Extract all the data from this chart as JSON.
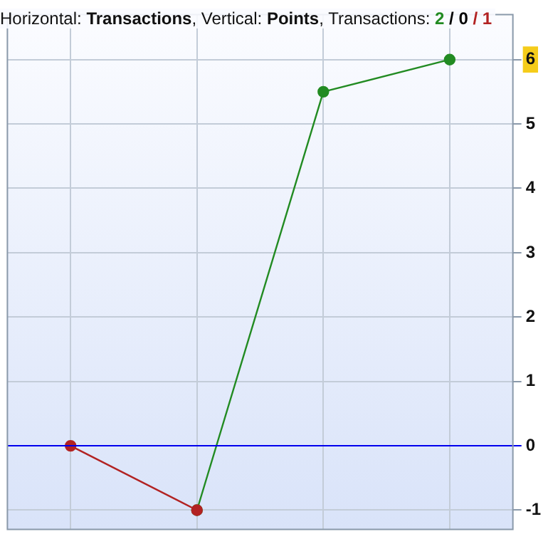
{
  "chart_data": {
    "type": "line",
    "title": "Horizontal: Transactions, Vertical: Points, Transactions: 2 / 0 / 1",
    "categories": [
      null,
      null,
      null,
      null
    ],
    "series": [
      {
        "color": "#b22222",
        "values": [
          0,
          -1,
          null,
          null
        ]
      },
      {
        "color": "#228b22",
        "values": [
          null,
          -1,
          5.5,
          6
        ]
      }
    ],
    "ylim": [
      -1.3,
      6.7
    ],
    "yticks": [
      -1,
      0,
      1,
      2,
      3,
      4,
      5,
      6
    ],
    "ref_lines": [
      {
        "axis": "y",
        "value": 0,
        "color": "#0000ee"
      }
    ],
    "grid": true,
    "legend": false,
    "marker": "circle",
    "line_style": "solid"
  }
}
